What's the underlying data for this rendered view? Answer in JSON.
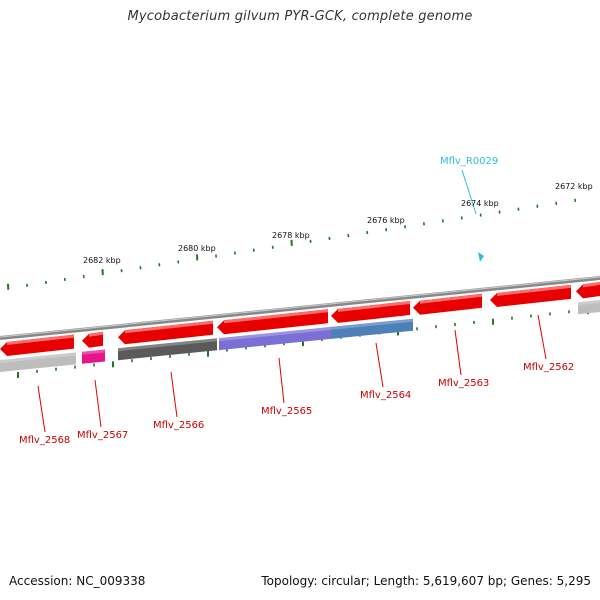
{
  "title": "Mycobacterium gilvum PYR-GCK, complete genome",
  "footer": {
    "accession": "Accession: NC_009338",
    "topology": "Topology: circular; Length: 5,619,607 bp; Genes: 5,295"
  },
  "colors": {
    "cds": "#e80000",
    "rna": "#33bbe0",
    "tick": "#1f7a1f",
    "backbone": "#888888",
    "cog_light": "#bdbdbd",
    "cog_dark": "#5a5a5a",
    "cog_pink": "#e8148c",
    "cog_purple": "#7b6fd6",
    "cog_blue": "#4d7fb8"
  },
  "ruler_labels": [
    "2682 kbp",
    "2680 kbp",
    "2678 kbp",
    "2676 kbp",
    "2674 kbp",
    "2672 kbp"
  ],
  "genes": [
    {
      "label": "Mflv_2568",
      "cog": "light"
    },
    {
      "label": "Mflv_2567",
      "cog": "pink"
    },
    {
      "label": "Mflv_2566",
      "cog": "dark"
    },
    {
      "label": "Mflv_2565",
      "cog": "purple"
    },
    {
      "label": "Mflv_2564",
      "cog": "blue"
    },
    {
      "label": "Mflv_2563",
      "cog": "none"
    },
    {
      "label": "Mflv_2562",
      "cog": "light"
    }
  ],
  "rna": {
    "label": "Mflv_R0029"
  }
}
